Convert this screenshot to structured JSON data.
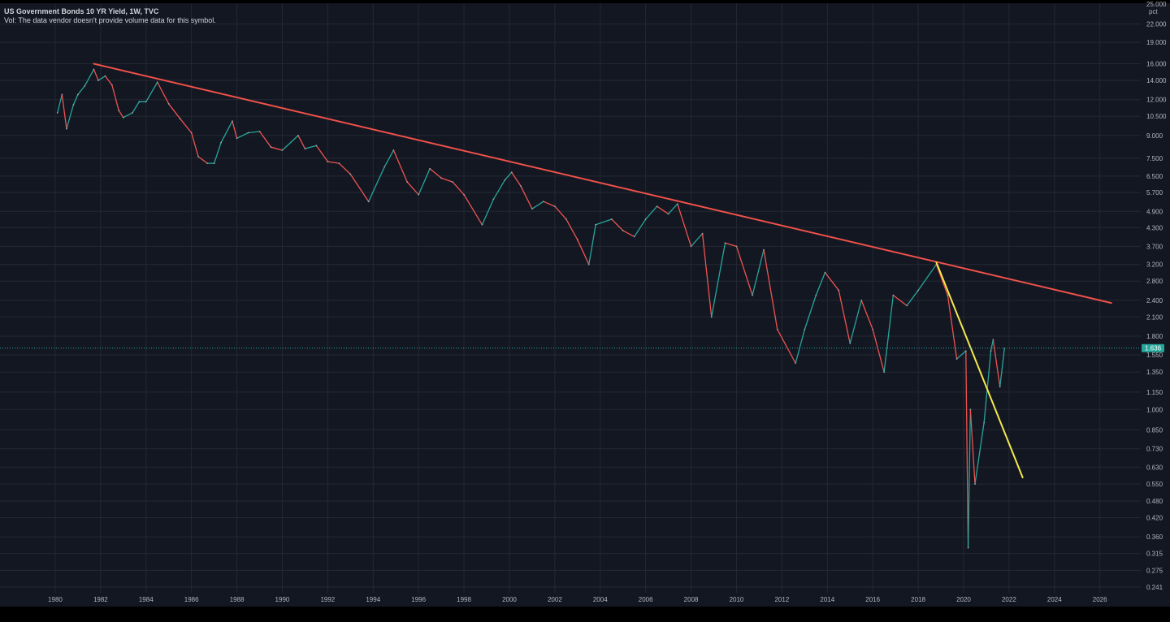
{
  "legend": {
    "title": "US Government Bonds 10 YR Yield, 1W, TVC",
    "volume_note": "Vol: The data vendor doesn't provide volume data for this symbol."
  },
  "axis": {
    "unit_label": "pct",
    "top_label": "25.000"
  },
  "current_price": {
    "label": "1.636",
    "value": 1.636,
    "color": "#26a69a"
  },
  "colors": {
    "background": "#131722",
    "grid": "#242833",
    "up": "#26a69a",
    "down": "#ef5350",
    "long_trendline": "#f0514a",
    "short_trendline": "#f5e94b",
    "axis_text": "#b2b5be"
  },
  "chart_data": {
    "type": "line",
    "title": "US Government Bonds 10 YR Yield, 1W, TVC",
    "xlabel": "",
    "ylabel": "",
    "y_scale": "log",
    "x_ticks": [
      "1980",
      "1982",
      "1984",
      "1986",
      "1988",
      "1990",
      "1992",
      "1994",
      "1996",
      "1998",
      "2000",
      "2002",
      "2004",
      "2006",
      "2008",
      "2010",
      "2012",
      "2014",
      "2016",
      "2018",
      "2020",
      "2022",
      "2024",
      "2026"
    ],
    "y_ticks": [
      22.0,
      19.0,
      16.0,
      14.0,
      12.0,
      10.5,
      9.0,
      7.5,
      6.5,
      5.7,
      4.9,
      4.3,
      3.7,
      3.2,
      2.8,
      2.4,
      2.1,
      1.8,
      1.55,
      1.35,
      1.15,
      1.0,
      0.85,
      0.73,
      0.63,
      0.55,
      0.48,
      0.42,
      0.36,
      0.315,
      0.275,
      0.241
    ],
    "y_tick_labels": [
      "22.000",
      "19.000",
      "16.000",
      "14.000",
      "12.000",
      "10.500",
      "9.000",
      "7.500",
      "6.500",
      "5.700",
      "4.900",
      "4.300",
      "3.700",
      "3.200",
      "2.800",
      "2.400",
      "2.100",
      "1.800",
      "1.550",
      "1.350",
      "1.150",
      "1.000",
      "0.850",
      "0.730",
      "0.630",
      "0.550",
      "0.480",
      "0.420",
      "0.360",
      "0.315",
      "0.275",
      "0.241"
    ],
    "xlim": [
      1979.0,
      2027.8
    ],
    "ylim": [
      0.23,
      25.0
    ],
    "series": [
      {
        "values": [
          [
            1980.1,
            10.8
          ],
          [
            1980.3,
            12.5
          ],
          [
            1980.5,
            9.5
          ],
          [
            1980.8,
            11.5
          ],
          [
            1981.0,
            12.5
          ],
          [
            1981.3,
            13.4
          ],
          [
            1981.7,
            15.3
          ],
          [
            1981.9,
            14.0
          ],
          [
            1982.2,
            14.5
          ],
          [
            1982.5,
            13.5
          ],
          [
            1982.8,
            11.0
          ],
          [
            1983.0,
            10.4
          ],
          [
            1983.4,
            10.8
          ],
          [
            1983.7,
            11.8
          ],
          [
            1984.0,
            11.8
          ],
          [
            1984.5,
            13.8
          ],
          [
            1985.0,
            11.6
          ],
          [
            1985.5,
            10.3
          ],
          [
            1986.0,
            9.2
          ],
          [
            1986.3,
            7.6
          ],
          [
            1986.7,
            7.2
          ],
          [
            1987.0,
            7.2
          ],
          [
            1987.3,
            8.5
          ],
          [
            1987.8,
            10.1
          ],
          [
            1988.0,
            8.8
          ],
          [
            1988.5,
            9.2
          ],
          [
            1989.0,
            9.3
          ],
          [
            1989.5,
            8.2
          ],
          [
            1990.0,
            8.0
          ],
          [
            1990.7,
            9.0
          ],
          [
            1991.0,
            8.1
          ],
          [
            1991.5,
            8.3
          ],
          [
            1992.0,
            7.3
          ],
          [
            1992.5,
            7.2
          ],
          [
            1993.0,
            6.6
          ],
          [
            1993.8,
            5.3
          ],
          [
            1994.5,
            7.0
          ],
          [
            1994.9,
            8.0
          ],
          [
            1995.5,
            6.2
          ],
          [
            1996.0,
            5.6
          ],
          [
            1996.5,
            6.9
          ],
          [
            1997.0,
            6.4
          ],
          [
            1997.5,
            6.2
          ],
          [
            1998.0,
            5.6
          ],
          [
            1998.8,
            4.4
          ],
          [
            1999.3,
            5.4
          ],
          [
            1999.8,
            6.3
          ],
          [
            2000.1,
            6.7
          ],
          [
            2000.5,
            6.0
          ],
          [
            2001.0,
            5.0
          ],
          [
            2001.5,
            5.3
          ],
          [
            2002.0,
            5.1
          ],
          [
            2002.5,
            4.6
          ],
          [
            2003.0,
            3.9
          ],
          [
            2003.5,
            3.2
          ],
          [
            2003.8,
            4.4
          ],
          [
            2004.5,
            4.6
          ],
          [
            2005.0,
            4.2
          ],
          [
            2005.5,
            4.0
          ],
          [
            2006.0,
            4.6
          ],
          [
            2006.5,
            5.1
          ],
          [
            2007.0,
            4.8
          ],
          [
            2007.4,
            5.2
          ],
          [
            2008.0,
            3.7
          ],
          [
            2008.5,
            4.1
          ],
          [
            2008.9,
            2.1
          ],
          [
            2009.5,
            3.8
          ],
          [
            2010.0,
            3.7
          ],
          [
            2010.7,
            2.5
          ],
          [
            2011.2,
            3.6
          ],
          [
            2011.8,
            1.9
          ],
          [
            2012.6,
            1.45
          ],
          [
            2013.0,
            1.9
          ],
          [
            2013.5,
            2.5
          ],
          [
            2013.9,
            3.0
          ],
          [
            2014.5,
            2.6
          ],
          [
            2015.0,
            1.7
          ],
          [
            2015.5,
            2.4
          ],
          [
            2016.0,
            1.9
          ],
          [
            2016.5,
            1.35
          ],
          [
            2016.9,
            2.5
          ],
          [
            2017.5,
            2.3
          ],
          [
            2018.0,
            2.6
          ],
          [
            2018.8,
            3.2
          ],
          [
            2019.3,
            2.5
          ],
          [
            2019.7,
            1.5
          ],
          [
            2020.1,
            1.6
          ],
          [
            2020.2,
            0.33
          ],
          [
            2020.3,
            1.0
          ],
          [
            2020.5,
            0.55
          ],
          [
            2020.9,
            0.9
          ],
          [
            2021.2,
            1.6
          ],
          [
            2021.3,
            1.75
          ],
          [
            2021.6,
            1.2
          ],
          [
            2021.8,
            1.636
          ]
        ]
      }
    ],
    "trendlines": [
      {
        "name": "long-term-resistance",
        "color": "#f0514a",
        "from": [
          1981.7,
          16.0
        ],
        "to": [
          2026.5,
          2.35
        ]
      },
      {
        "name": "short-term-resistance",
        "color": "#f5e94b",
        "from": [
          2018.8,
          3.25
        ],
        "to": [
          2022.6,
          0.58
        ]
      }
    ],
    "last_value": 1.636,
    "grid": true,
    "legend": "top-left"
  }
}
